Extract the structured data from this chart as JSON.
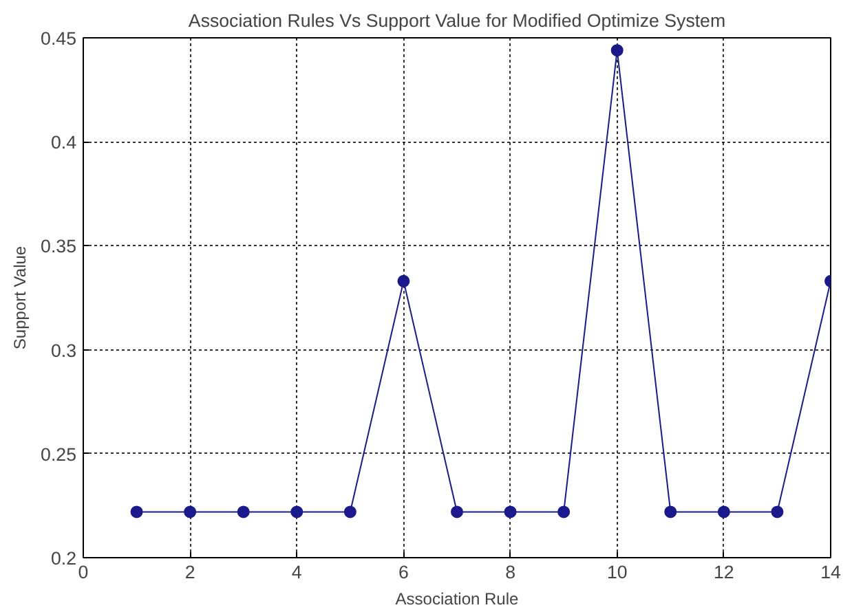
{
  "chart_data": {
    "type": "line",
    "title": "Association Rules Vs Support Value for Modified Optimize System",
    "xlabel": "Association Rule",
    "ylabel": "Support Value",
    "x": [
      1,
      2,
      3,
      4,
      5,
      6,
      7,
      8,
      9,
      10,
      11,
      12,
      13,
      14
    ],
    "series": [
      {
        "color": "#1a1a8c",
        "values": [
          0.222,
          0.222,
          0.222,
          0.222,
          0.222,
          0.333,
          0.222,
          0.222,
          0.222,
          0.444,
          0.222,
          0.222,
          0.222,
          0.333
        ]
      }
    ],
    "xlim": [
      0,
      14
    ],
    "ylim": [
      0.2,
      0.45
    ],
    "xticks": [
      0,
      2,
      4,
      6,
      8,
      10,
      12,
      14
    ],
    "yticks": [
      0.2,
      0.25,
      0.3,
      0.35,
      0.4,
      0.45
    ],
    "grid": true,
    "marker": "circle",
    "line_style": "solid"
  }
}
